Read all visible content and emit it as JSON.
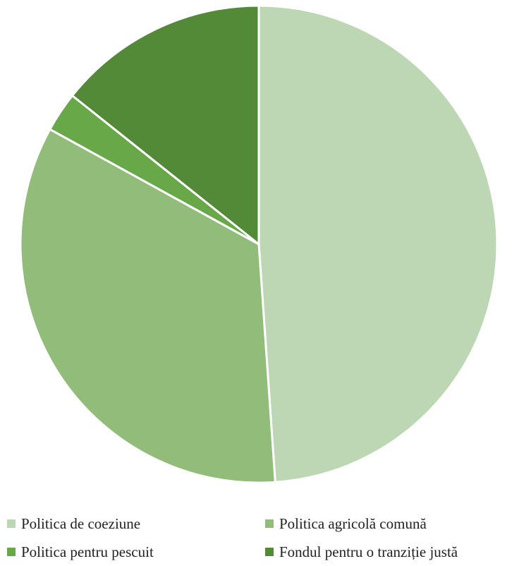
{
  "chart_data": {
    "type": "pie",
    "title": "",
    "slices": [
      {
        "label": "Politica de coeziune",
        "value": 48.9,
        "color": "#BDD7B4"
      },
      {
        "label": "Politica agricolă comună",
        "value": 34.1,
        "color": "#91BC7A"
      },
      {
        "label": "Politica pentru pescuit",
        "value": 2.7,
        "color": "#69A848"
      },
      {
        "label": "Fondul pentru o tranziție justă",
        "value": 14.3,
        "color": "#538A37"
      }
    ],
    "legend_position": "bottom",
    "start_angle": "12 o'clock",
    "direction": "clockwise"
  }
}
